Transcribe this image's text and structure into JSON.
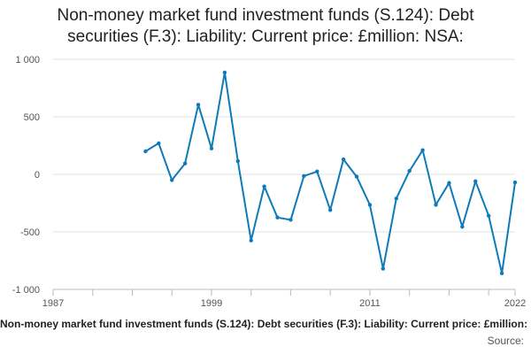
{
  "title_lines": [
    "Non-money market fund investment funds (S.124): Debt",
    "securities (F.3): Liability: Current price: £million: NSA:"
  ],
  "legend_text": "Non-money market fund investment funds (S.124): Debt securities (F.3): Liability: Current price: £million: NSA:",
  "source_label": "Source:",
  "colors": {
    "series": "#0f7ab8",
    "grid": "#e0e0e0",
    "axis": "#bbbbbb",
    "tick_text": "#555555"
  },
  "chart_data": {
    "type": "line",
    "title": "Non-money market fund investment funds (S.124): Debt securities (F.3): Liability: Current price: £million: NSA:",
    "xlabel": "",
    "ylabel": "",
    "xlim": [
      1987,
      2022
    ],
    "ylim": [
      -1000,
      1000
    ],
    "x_ticks": [
      1987,
      1999,
      2011,
      2022
    ],
    "y_ticks": [
      -1000,
      -500,
      0,
      500,
      1000
    ],
    "y_tick_labels": [
      "-1 000",
      "-500",
      "0",
      "500",
      "1 000"
    ],
    "grid": "horizontal",
    "legend": "bottom",
    "series": [
      {
        "name": "Non-money market fund investment funds (S.124): Debt securities (F.3): Liability: Current price: £million: NSA:",
        "x": [
          1994,
          1995,
          1996,
          1997,
          1998,
          1999,
          2000,
          2001,
          2002,
          2003,
          2004,
          2005,
          2006,
          2007,
          2008,
          2009,
          2010,
          2011,
          2012,
          2013,
          2014,
          2015,
          2016,
          2017,
          2018,
          2019,
          2020,
          2021,
          2022
        ],
        "values": [
          200,
          270,
          -50,
          95,
          605,
          225,
          885,
          115,
          -575,
          -105,
          -375,
          -395,
          -15,
          25,
          -310,
          130,
          -20,
          -265,
          -820,
          -210,
          30,
          210,
          -265,
          -75,
          -455,
          -60,
          -360,
          -860,
          -70
        ]
      }
    ]
  }
}
